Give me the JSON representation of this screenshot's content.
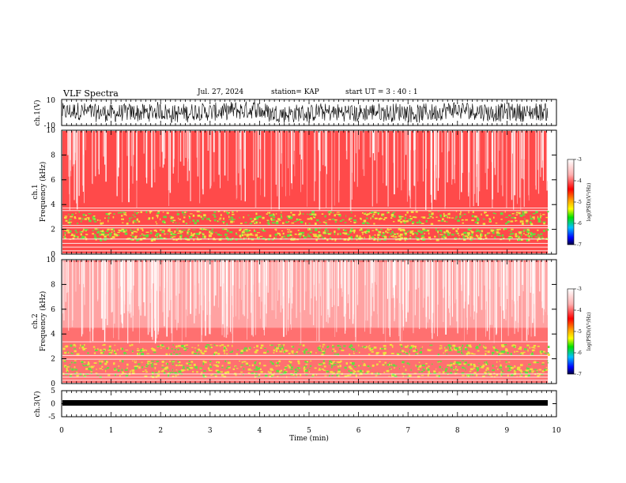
{
  "header": {
    "title": "VLF Spectra",
    "date": "Jul. 27, 2024",
    "station": "station= KAP",
    "start": "start UT =  3 : 40 : 1"
  },
  "chart_data": [
    {
      "type": "line",
      "id": "ch1-waveform",
      "ylabel": "ch.1(V)",
      "ylim": [
        -10,
        10
      ],
      "yticks": [
        -10,
        10
      ],
      "xlim": [
        0,
        10
      ],
      "description_of_signal": "dense noisy waveform roughly between -9 and 9 V"
    },
    {
      "type": "heatmap",
      "id": "ch1-spectrogram",
      "ylabel_top": "ch.1",
      "ylabel": "Frequency (kHz)",
      "ylim": [
        0,
        10
      ],
      "yticks": [
        0,
        2,
        4,
        6,
        8,
        10
      ],
      "xlim": [
        0,
        10
      ],
      "colorbar": {
        "label": "log(PSD)(V²/Hz)",
        "ticks": [
          -3,
          -4,
          -5,
          -6,
          -7
        ],
        "range": [
          -7,
          -3
        ]
      }
    },
    {
      "type": "heatmap",
      "id": "ch2-spectrogram",
      "ylabel_top": "ch.2",
      "ylabel": "Frequency (kHz)",
      "ylim": [
        0,
        10
      ],
      "yticks": [
        0,
        2,
        4,
        6,
        8,
        10
      ],
      "xlim": [
        0,
        10
      ],
      "colorbar": {
        "label": "log(PSD)(V²/Hz)",
        "ticks": [
          -3,
          -4,
          -5,
          -6,
          -7
        ],
        "range": [
          -7,
          -3
        ]
      }
    },
    {
      "type": "line",
      "id": "ch3-waveform",
      "ylabel": "ch.3(V)",
      "ylim": [
        -5,
        5
      ],
      "yticks": [
        -5,
        0,
        5
      ],
      "xlim": [
        0,
        10
      ],
      "xlabel": "Time (min)",
      "xticks": [
        0,
        1,
        2,
        3,
        4,
        5,
        6,
        7,
        8,
        9,
        10
      ],
      "description_of_signal": "narrow band near -1 V"
    }
  ],
  "colors": {
    "spectro_bg": "#ff5a5a",
    "spectro_white": "#ffffff",
    "spectro_red": "#ff2020",
    "spectro_yellow": "#f0e040",
    "spectro_green": "#60e040",
    "trace": "#000000"
  }
}
